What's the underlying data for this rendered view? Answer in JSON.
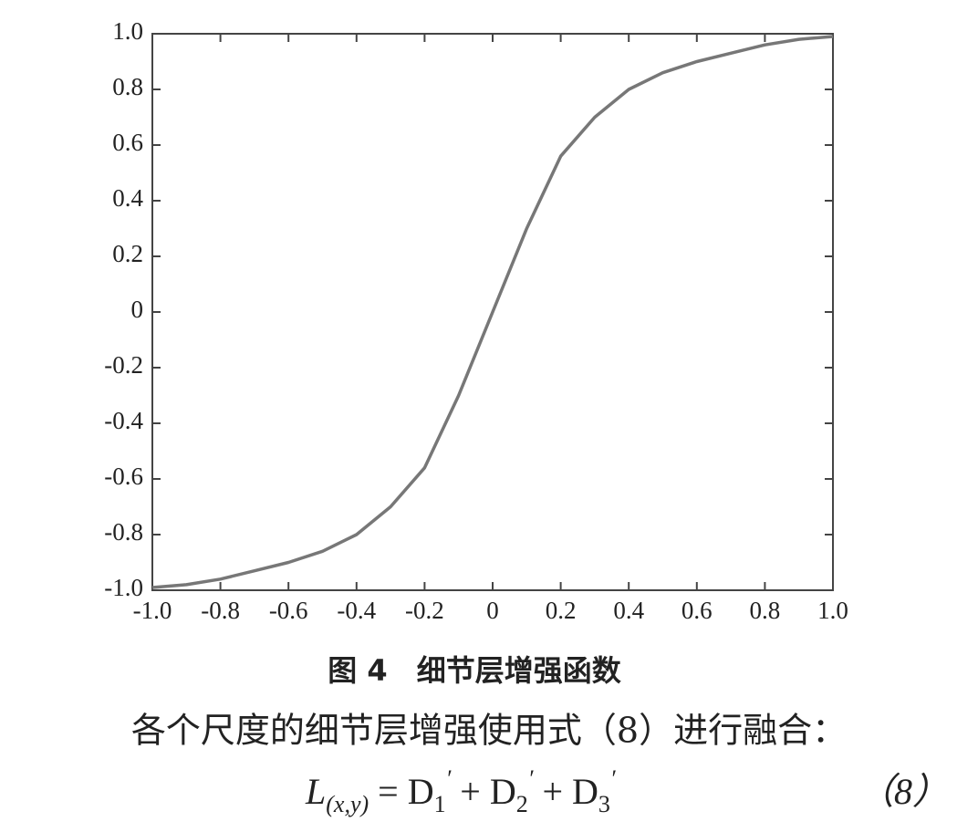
{
  "chart_data": {
    "type": "line",
    "x": [
      -1.0,
      -0.9,
      -0.8,
      -0.7,
      -0.6,
      -0.5,
      -0.4,
      -0.3,
      -0.2,
      -0.1,
      0,
      0.1,
      0.2,
      0.3,
      0.4,
      0.5,
      0.6,
      0.7,
      0.8,
      0.9,
      1.0
    ],
    "series": [
      {
        "color": "#777777",
        "values": [
          -0.99,
          -0.98,
          -0.96,
          -0.93,
          -0.9,
          -0.86,
          -0.8,
          -0.7,
          -0.56,
          -0.3,
          0,
          0.3,
          0.56,
          0.7,
          0.8,
          0.86,
          0.9,
          0.93,
          0.96,
          0.98,
          0.99
        ]
      }
    ],
    "xlim": [
      -1,
      1
    ],
    "xticks": [
      {
        "value": -1,
        "label": "-1.0"
      },
      -0.8,
      -0.6,
      -0.4,
      -0.2,
      0,
      0.2,
      0.4,
      0.6,
      0.8,
      {
        "value": 1,
        "label": "1.0"
      }
    ],
    "ylim": [
      -1,
      1
    ],
    "yticks": [
      {
        "value": -1,
        "label": "-1.0"
      },
      -0.8,
      -0.6,
      -0.4,
      -0.2,
      0,
      0.2,
      0.4,
      0.6,
      0.8,
      {
        "value": 1,
        "label": "1.0"
      }
    ],
    "grid": false,
    "caption": "图 4　细节层增强函数"
  },
  "paragraph": "各个尺度的细节层增强使用式（8）进行融合：",
  "equation": {
    "parts": [
      "L",
      "(x,y)",
      " = D",
      "1",
      "′",
      " + D",
      "2",
      "′",
      " + D",
      "3",
      "′"
    ],
    "number": "（8）"
  }
}
